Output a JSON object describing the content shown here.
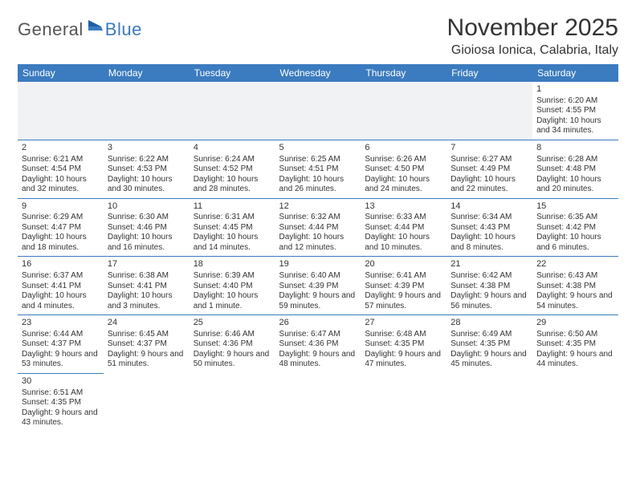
{
  "logo": {
    "text1": "General",
    "text2": "Blue"
  },
  "title": "November 2025",
  "location": "Gioiosa Ionica, Calabria, Italy",
  "colors": {
    "header_bg": "#3b7bbf",
    "header_text": "#ffffff",
    "text": "#333333",
    "border": "#3b7bbf",
    "blank_bg": "#f1f2f3",
    "logo_gray": "#555555",
    "logo_blue": "#3b7bbf",
    "background": "#ffffff"
  },
  "typography": {
    "title_fontsize": 30,
    "location_fontsize": 16,
    "weekday_fontsize": 12,
    "cell_fontsize": 10,
    "logo_fontsize": 22
  },
  "weekdays": [
    "Sunday",
    "Monday",
    "Tuesday",
    "Wednesday",
    "Thursday",
    "Friday",
    "Saturday"
  ],
  "weeks": [
    [
      null,
      null,
      null,
      null,
      null,
      null,
      {
        "n": "1",
        "sr": "Sunrise: 6:20 AM",
        "ss": "Sunset: 4:55 PM",
        "dl": "Daylight: 10 hours and 34 minutes."
      }
    ],
    [
      {
        "n": "2",
        "sr": "Sunrise: 6:21 AM",
        "ss": "Sunset: 4:54 PM",
        "dl": "Daylight: 10 hours and 32 minutes."
      },
      {
        "n": "3",
        "sr": "Sunrise: 6:22 AM",
        "ss": "Sunset: 4:53 PM",
        "dl": "Daylight: 10 hours and 30 minutes."
      },
      {
        "n": "4",
        "sr": "Sunrise: 6:24 AM",
        "ss": "Sunset: 4:52 PM",
        "dl": "Daylight: 10 hours and 28 minutes."
      },
      {
        "n": "5",
        "sr": "Sunrise: 6:25 AM",
        "ss": "Sunset: 4:51 PM",
        "dl": "Daylight: 10 hours and 26 minutes."
      },
      {
        "n": "6",
        "sr": "Sunrise: 6:26 AM",
        "ss": "Sunset: 4:50 PM",
        "dl": "Daylight: 10 hours and 24 minutes."
      },
      {
        "n": "7",
        "sr": "Sunrise: 6:27 AM",
        "ss": "Sunset: 4:49 PM",
        "dl": "Daylight: 10 hours and 22 minutes."
      },
      {
        "n": "8",
        "sr": "Sunrise: 6:28 AM",
        "ss": "Sunset: 4:48 PM",
        "dl": "Daylight: 10 hours and 20 minutes."
      }
    ],
    [
      {
        "n": "9",
        "sr": "Sunrise: 6:29 AM",
        "ss": "Sunset: 4:47 PM",
        "dl": "Daylight: 10 hours and 18 minutes."
      },
      {
        "n": "10",
        "sr": "Sunrise: 6:30 AM",
        "ss": "Sunset: 4:46 PM",
        "dl": "Daylight: 10 hours and 16 minutes."
      },
      {
        "n": "11",
        "sr": "Sunrise: 6:31 AM",
        "ss": "Sunset: 4:45 PM",
        "dl": "Daylight: 10 hours and 14 minutes."
      },
      {
        "n": "12",
        "sr": "Sunrise: 6:32 AM",
        "ss": "Sunset: 4:44 PM",
        "dl": "Daylight: 10 hours and 12 minutes."
      },
      {
        "n": "13",
        "sr": "Sunrise: 6:33 AM",
        "ss": "Sunset: 4:44 PM",
        "dl": "Daylight: 10 hours and 10 minutes."
      },
      {
        "n": "14",
        "sr": "Sunrise: 6:34 AM",
        "ss": "Sunset: 4:43 PM",
        "dl": "Daylight: 10 hours and 8 minutes."
      },
      {
        "n": "15",
        "sr": "Sunrise: 6:35 AM",
        "ss": "Sunset: 4:42 PM",
        "dl": "Daylight: 10 hours and 6 minutes."
      }
    ],
    [
      {
        "n": "16",
        "sr": "Sunrise: 6:37 AM",
        "ss": "Sunset: 4:41 PM",
        "dl": "Daylight: 10 hours and 4 minutes."
      },
      {
        "n": "17",
        "sr": "Sunrise: 6:38 AM",
        "ss": "Sunset: 4:41 PM",
        "dl": "Daylight: 10 hours and 3 minutes."
      },
      {
        "n": "18",
        "sr": "Sunrise: 6:39 AM",
        "ss": "Sunset: 4:40 PM",
        "dl": "Daylight: 10 hours and 1 minute."
      },
      {
        "n": "19",
        "sr": "Sunrise: 6:40 AM",
        "ss": "Sunset: 4:39 PM",
        "dl": "Daylight: 9 hours and 59 minutes."
      },
      {
        "n": "20",
        "sr": "Sunrise: 6:41 AM",
        "ss": "Sunset: 4:39 PM",
        "dl": "Daylight: 9 hours and 57 minutes."
      },
      {
        "n": "21",
        "sr": "Sunrise: 6:42 AM",
        "ss": "Sunset: 4:38 PM",
        "dl": "Daylight: 9 hours and 56 minutes."
      },
      {
        "n": "22",
        "sr": "Sunrise: 6:43 AM",
        "ss": "Sunset: 4:38 PM",
        "dl": "Daylight: 9 hours and 54 minutes."
      }
    ],
    [
      {
        "n": "23",
        "sr": "Sunrise: 6:44 AM",
        "ss": "Sunset: 4:37 PM",
        "dl": "Daylight: 9 hours and 53 minutes."
      },
      {
        "n": "24",
        "sr": "Sunrise: 6:45 AM",
        "ss": "Sunset: 4:37 PM",
        "dl": "Daylight: 9 hours and 51 minutes."
      },
      {
        "n": "25",
        "sr": "Sunrise: 6:46 AM",
        "ss": "Sunset: 4:36 PM",
        "dl": "Daylight: 9 hours and 50 minutes."
      },
      {
        "n": "26",
        "sr": "Sunrise: 6:47 AM",
        "ss": "Sunset: 4:36 PM",
        "dl": "Daylight: 9 hours and 48 minutes."
      },
      {
        "n": "27",
        "sr": "Sunrise: 6:48 AM",
        "ss": "Sunset: 4:35 PM",
        "dl": "Daylight: 9 hours and 47 minutes."
      },
      {
        "n": "28",
        "sr": "Sunrise: 6:49 AM",
        "ss": "Sunset: 4:35 PM",
        "dl": "Daylight: 9 hours and 45 minutes."
      },
      {
        "n": "29",
        "sr": "Sunrise: 6:50 AM",
        "ss": "Sunset: 4:35 PM",
        "dl": "Daylight: 9 hours and 44 minutes."
      }
    ],
    [
      {
        "n": "30",
        "sr": "Sunrise: 6:51 AM",
        "ss": "Sunset: 4:35 PM",
        "dl": "Daylight: 9 hours and 43 minutes."
      },
      null,
      null,
      null,
      null,
      null,
      null
    ]
  ]
}
